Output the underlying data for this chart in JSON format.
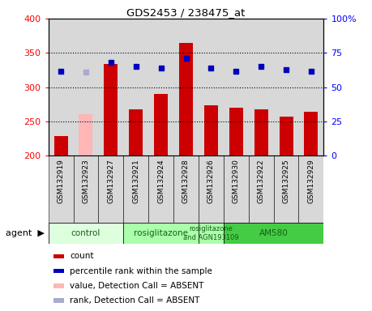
{
  "title": "GDS2453 / 238475_at",
  "samples": [
    "GSM132919",
    "GSM132923",
    "GSM132927",
    "GSM132921",
    "GSM132924",
    "GSM132928",
    "GSM132926",
    "GSM132930",
    "GSM132922",
    "GSM132925",
    "GSM132929"
  ],
  "bar_values": [
    228,
    260,
    334,
    268,
    290,
    365,
    273,
    270,
    267,
    257,
    264
  ],
  "bar_absent": [
    false,
    true,
    false,
    false,
    false,
    false,
    false,
    false,
    false,
    false,
    false
  ],
  "percentile_values": [
    61.5,
    61.0,
    68.0,
    65.0,
    64.0,
    71.0,
    64.0,
    61.5,
    65.0,
    62.5,
    61.5
  ],
  "percentile_absent": [
    false,
    true,
    false,
    false,
    false,
    false,
    false,
    false,
    false,
    false,
    false
  ],
  "ylim_left": [
    200,
    400
  ],
  "ylim_right": [
    0,
    100
  ],
  "yticks_left": [
    200,
    250,
    300,
    350,
    400
  ],
  "yticks_right": [
    0,
    25,
    50,
    75,
    100
  ],
  "bar_color_normal": "#cc0000",
  "bar_color_absent": "#ffb6b6",
  "dot_color_normal": "#0000bb",
  "dot_color_absent": "#aaaacc",
  "col_bg_color": "#d8d8d8",
  "plot_bg_color": "#ffffff",
  "agent_groups": [
    {
      "label": "control",
      "start": 0,
      "end": 3,
      "color": "#ddffdd"
    },
    {
      "label": "rosiglitazone",
      "start": 3,
      "end": 6,
      "color": "#aaffaa"
    },
    {
      "label": "rosiglitazone\nand AGN193109",
      "start": 6,
      "end": 7,
      "color": "#aaffaa"
    },
    {
      "label": "AM580",
      "start": 7,
      "end": 11,
      "color": "#44cc44"
    }
  ],
  "legend_items": [
    {
      "label": "count",
      "color": "#cc0000"
    },
    {
      "label": "percentile rank within the sample",
      "color": "#0000bb"
    },
    {
      "label": "value, Detection Call = ABSENT",
      "color": "#ffb6b6"
    },
    {
      "label": "rank, Detection Call = ABSENT",
      "color": "#aaaacc"
    }
  ],
  "grid_yticks": [
    250,
    300,
    350
  ]
}
